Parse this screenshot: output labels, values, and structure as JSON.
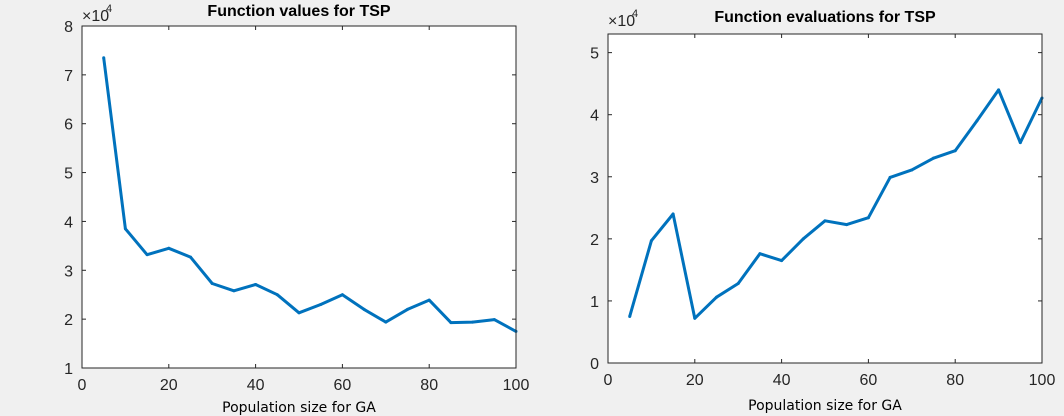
{
  "chart_data": [
    {
      "type": "line",
      "title": "Function values for TSP",
      "xlabel": "Population size for GA",
      "ylabel": "",
      "y_multiplier": {
        "base": "×10",
        "exponent": "4"
      },
      "xlim": [
        0,
        100
      ],
      "ylim": [
        1,
        8
      ],
      "xticks": [
        "0",
        "20",
        "40",
        "60",
        "80",
        "100"
      ],
      "yticks": [
        "1",
        "2",
        "3",
        "4",
        "5",
        "6",
        "7",
        "8"
      ],
      "grid": false,
      "color": "#0072bd",
      "x": [
        5,
        10,
        15,
        20,
        25,
        30,
        35,
        40,
        45,
        50,
        55,
        60,
        65,
        70,
        75,
        80,
        85,
        90,
        95,
        100
      ],
      "y": [
        7.35,
        3.85,
        3.32,
        3.45,
        3.27,
        2.73,
        2.58,
        2.71,
        2.5,
        2.13,
        2.3,
        2.5,
        2.2,
        1.94,
        2.2,
        2.39,
        1.93,
        1.94,
        1.99,
        1.75
      ]
    },
    {
      "type": "line",
      "title": "Function evaluations for TSP",
      "xlabel": "Population size for GA",
      "ylabel": "",
      "y_multiplier": {
        "base": "×10",
        "exponent": "4"
      },
      "xlim": [
        0,
        100
      ],
      "ylim": [
        0,
        5.3
      ],
      "xticks": [
        "0",
        "20",
        "40",
        "60",
        "80",
        "100"
      ],
      "yticks": [
        "0",
        "1",
        "2",
        "3",
        "4",
        "5"
      ],
      "grid": false,
      "color": "#0072bd",
      "x": [
        5,
        10,
        15,
        20,
        25,
        30,
        35,
        40,
        45,
        50,
        55,
        60,
        65,
        70,
        75,
        80,
        85,
        90,
        95,
        100
      ],
      "y": [
        0.75,
        1.97,
        2.4,
        0.72,
        1.06,
        1.28,
        1.76,
        1.65,
        2.0,
        2.29,
        2.23,
        2.34,
        2.99,
        3.11,
        3.3,
        3.42,
        3.9,
        4.4,
        3.55,
        4.27
      ]
    }
  ]
}
